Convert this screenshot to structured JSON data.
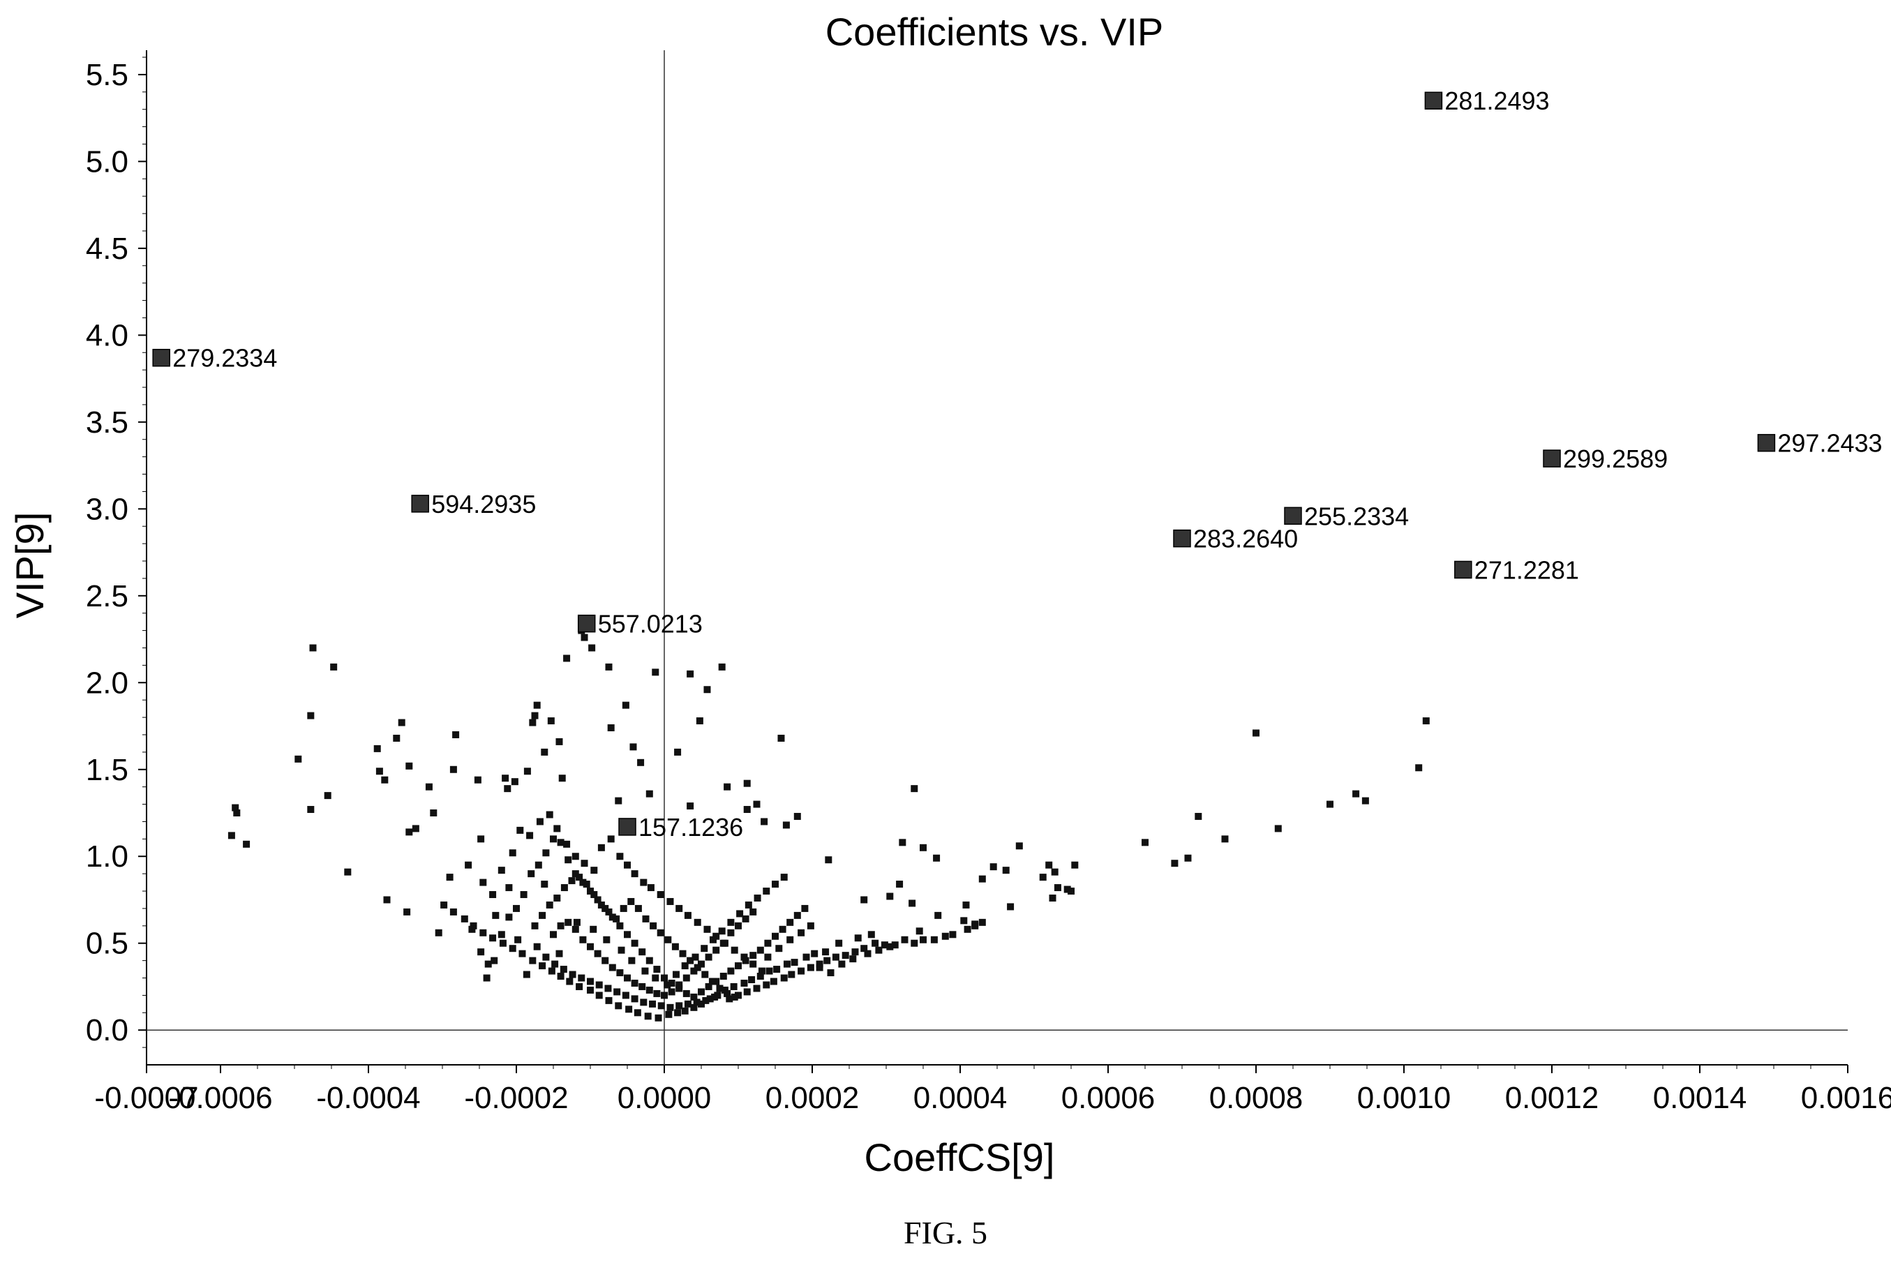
{
  "chart_data": {
    "type": "scatter",
    "title": "Coefficients vs. VIP",
    "xlabel": "CoeffCS[9]",
    "ylabel": "VIP[9]",
    "xlim": [
      -0.0007,
      0.0016
    ],
    "ylim": [
      -0.2,
      5.6
    ],
    "x_ticks": [
      -0.0007,
      -0.0006,
      -0.0004,
      -0.0002,
      0.0,
      0.0002,
      0.0004,
      0.0006,
      0.0008,
      0.001,
      0.0012,
      0.0014,
      0.0016
    ],
    "x_tick_labels": [
      "-0.0007",
      "-0.0006",
      "-0.0004",
      "-0.0002",
      "0.0000",
      "0.0002",
      "0.0004",
      "0.0006",
      "0.0008",
      "0.0010",
      "0.0012",
      "0.0014",
      "0.0016"
    ],
    "y_ticks": [
      0.0,
      0.5,
      1.0,
      1.5,
      2.0,
      2.5,
      3.0,
      3.5,
      4.0,
      4.5,
      5.0,
      5.5
    ],
    "y_tick_labels": [
      "0.0",
      "0.5",
      "1.0",
      "1.5",
      "2.0",
      "2.5",
      "3.0",
      "3.5",
      "4.0",
      "4.5",
      "5.0",
      "5.5"
    ],
    "grid": false,
    "zero_lines": true,
    "marker_color": "#111111",
    "highlight_color": "#333333",
    "labeled_points": [
      {
        "label": "281.2493",
        "x": 0.00104,
        "y": 5.35
      },
      {
        "label": "279.2334",
        "x": -0.00068,
        "y": 3.87
      },
      {
        "label": "297.2433",
        "x": 0.00149,
        "y": 3.38
      },
      {
        "label": "299.2589",
        "x": 0.0012,
        "y": 3.29
      },
      {
        "label": "594.2935",
        "x": -0.00033,
        "y": 3.03
      },
      {
        "label": "255.2334",
        "x": 0.00085,
        "y": 2.96
      },
      {
        "label": "283.2640",
        "x": 0.0007,
        "y": 2.83
      },
      {
        "label": "271.2281",
        "x": 0.00108,
        "y": 2.65
      },
      {
        "label": "557.0213",
        "x": -0.000105,
        "y": 2.34
      },
      {
        "label": "157.1236",
        "x": -5e-05,
        "y": 1.17
      }
    ],
    "points": [
      [
        -0.00058,
        1.28
      ],
      [
        -0.000578,
        1.25
      ],
      [
        -0.000585,
        1.12
      ],
      [
        -0.000565,
        1.07
      ],
      [
        -0.000475,
        2.2
      ],
      [
        -0.000447,
        2.09
      ],
      [
        -0.000478,
        1.81
      ],
      [
        -0.000495,
        1.56
      ],
      [
        -0.000455,
        1.35
      ],
      [
        -0.000478,
        1.27
      ],
      [
        -0.000428,
        0.91
      ],
      [
        -0.000355,
        1.77
      ],
      [
        -0.000362,
        1.68
      ],
      [
        -0.000388,
        1.62
      ],
      [
        -0.000385,
        1.49
      ],
      [
        -0.000378,
        1.44
      ],
      [
        -0.000345,
        1.52
      ],
      [
        -0.000318,
        1.4
      ],
      [
        -0.000375,
        0.75
      ],
      [
        -0.000348,
        0.68
      ],
      [
        -0.000336,
        1.16
      ],
      [
        -0.000345,
        1.14
      ],
      [
        -0.000312,
        1.25
      ],
      [
        -0.000282,
        1.7
      ],
      [
        -0.000285,
        1.5
      ],
      [
        -0.000252,
        1.44
      ],
      [
        -0.000305,
        0.56
      ],
      [
        -0.000248,
        1.1
      ],
      [
        -0.00029,
        0.88
      ],
      [
        -0.000215,
        1.45
      ],
      [
        -0.000212,
        1.39
      ],
      [
        -0.000202,
        1.43
      ],
      [
        -0.000185,
        1.49
      ],
      [
        -0.000172,
        1.87
      ],
      [
        -0.000175,
        1.81
      ],
      [
        -0.000178,
        1.77
      ],
      [
        -0.000153,
        1.78
      ],
      [
        -0.000162,
        1.6
      ],
      [
        -0.000142,
        1.66
      ],
      [
        -0.000138,
        1.45
      ],
      [
        -0.000112,
        2.3
      ],
      [
        -0.000108,
        2.26
      ],
      [
        -0.000132,
        2.14
      ],
      [
        -9.8e-05,
        2.2
      ],
      [
        -7.5e-05,
        2.09
      ],
      [
        -7.2e-05,
        1.74
      ],
      [
        -5.2e-05,
        1.87
      ],
      [
        -4.2e-05,
        1.63
      ],
      [
        -3.2e-05,
        1.54
      ],
      [
        -1.2e-05,
        2.06
      ],
      [
        3.5e-05,
        2.05
      ],
      [
        5.8e-05,
        1.96
      ],
      [
        7.8e-05,
        2.09
      ],
      [
        4.8e-05,
        1.78
      ],
      [
        1.8e-05,
        1.6
      ],
      [
        0.000158,
        1.68
      ],
      [
        0.000112,
        1.42
      ],
      [
        8.5e-05,
        1.4
      ],
      [
        3.5e-05,
        1.29
      ],
      [
        -2e-05,
        1.36
      ],
      [
        -6.2e-05,
        1.32
      ],
      [
        0.000125,
        1.3
      ],
      [
        0.000112,
        1.27
      ],
      [
        0.00018,
        1.23
      ],
      [
        0.000165,
        1.18
      ],
      [
        0.000135,
        1.2
      ],
      [
        0.000338,
        1.39
      ],
      [
        0.000322,
        1.08
      ],
      [
        0.00035,
        1.05
      ],
      [
        0.000368,
        0.99
      ],
      [
        0.00048,
        1.06
      ],
      [
        0.000445,
        0.94
      ],
      [
        0.000462,
        0.92
      ],
      [
        0.00052,
        0.95
      ],
      [
        0.000528,
        0.91
      ],
      [
        0.000555,
        0.95
      ],
      [
        0.000512,
        0.88
      ],
      [
        0.000532,
        0.82
      ],
      [
        0.000545,
        0.81
      ],
      [
        0.00055,
        0.8
      ],
      [
        0.000525,
        0.76
      ],
      [
        0.00043,
        0.87
      ],
      [
        0.000408,
        0.72
      ],
      [
        0.000405,
        0.63
      ],
      [
        0.00042,
        0.61
      ],
      [
        0.00037,
        0.66
      ],
      [
        0.000335,
        0.73
      ],
      [
        0.000318,
        0.84
      ],
      [
        0.000305,
        0.77
      ],
      [
        0.000222,
        0.98
      ],
      [
        0.00027,
        0.75
      ],
      [
        0.000468,
        0.71
      ],
      [
        0.00065,
        1.08
      ],
      [
        0.00069,
        0.96
      ],
      [
        0.000708,
        0.99
      ],
      [
        0.000722,
        1.23
      ],
      [
        0.000758,
        1.1
      ],
      [
        0.0008,
        1.71
      ],
      [
        0.00083,
        1.16
      ],
      [
        0.0009,
        1.3
      ],
      [
        0.000935,
        1.36
      ],
      [
        0.000948,
        1.32
      ],
      [
        0.00102,
        1.51
      ],
      [
        0.00103,
        1.78
      ],
      [
        0.00043,
        0.62
      ],
      [
        0.00042,
        0.6
      ],
      [
        0.00041,
        0.58
      ],
      [
        0.00039,
        0.55
      ],
      [
        0.00038,
        0.54
      ],
      [
        0.000365,
        0.52
      ],
      [
        0.00035,
        0.52
      ],
      [
        0.000338,
        0.5
      ],
      [
        0.000325,
        0.52
      ],
      [
        0.000312,
        0.49
      ],
      [
        0.000298,
        0.49
      ],
      [
        0.000285,
        0.5
      ],
      [
        0.00027,
        0.47
      ],
      [
        0.000258,
        0.45
      ],
      [
        0.000245,
        0.43
      ],
      [
        0.000232,
        0.42
      ],
      [
        0.00022,
        0.4
      ],
      [
        0.00021,
        0.38
      ],
      [
        0.000198,
        0.36
      ],
      [
        0.000185,
        0.34
      ],
      [
        0.000172,
        0.32
      ],
      [
        0.000162,
        0.3
      ],
      [
        0.000148,
        0.28
      ],
      [
        0.000138,
        0.26
      ],
      [
        0.000125,
        0.24
      ],
      [
        0.000112,
        0.22
      ],
      [
        0.0001,
        0.2
      ],
      [
        8.8e-05,
        0.18
      ],
      [
        0.000345,
        0.57
      ],
      [
        0.00028,
        0.55
      ],
      [
        0.000262,
        0.53
      ],
      [
        0.000236,
        0.5
      ],
      [
        0.000218,
        0.45
      ],
      [
        0.000203,
        0.44
      ],
      [
        0.000192,
        0.42
      ],
      [
        0.000176,
        0.39
      ],
      [
        0.000166,
        0.38
      ],
      [
        0.000152,
        0.35
      ],
      [
        0.000142,
        0.34
      ],
      [
        0.00013,
        0.31
      ],
      [
        0.000118,
        0.29
      ],
      [
        0.000108,
        0.27
      ],
      [
        9.4e-05,
        0.25
      ],
      [
        8.2e-05,
        0.23
      ],
      [
        7.2e-05,
        0.2
      ],
      [
        6.2e-05,
        0.18
      ],
      [
        5e-05,
        0.15
      ],
      [
        4e-05,
        0.13
      ],
      [
        2.8e-05,
        0.11
      ],
      [
        1.8e-05,
        0.1
      ],
      [
        6e-06,
        0.09
      ],
      [
        -8e-06,
        0.07
      ],
      [
        -2.2e-05,
        0.08
      ],
      [
        -3.6e-05,
        0.1
      ],
      [
        -4.8e-05,
        0.12
      ],
      [
        -6.2e-05,
        0.14
      ],
      [
        -7.5e-05,
        0.17
      ],
      [
        -8.8e-05,
        0.2
      ],
      [
        -0.0001,
        0.23
      ],
      [
        -0.000115,
        0.25
      ],
      [
        -0.000128,
        0.28
      ],
      [
        -0.00014,
        0.31
      ],
      [
        -0.000152,
        0.34
      ],
      [
        -0.000165,
        0.37
      ],
      [
        -0.000178,
        0.4
      ],
      [
        -0.000192,
        0.44
      ],
      [
        -0.000205,
        0.47
      ],
      [
        -0.000218,
        0.5
      ],
      [
        -0.000232,
        0.53
      ],
      [
        -0.000245,
        0.56
      ],
      [
        -0.000258,
        0.6
      ],
      [
        -0.00027,
        0.64
      ],
      [
        -0.000285,
        0.68
      ],
      [
        -0.000298,
        0.72
      ],
      [
        -0.00024,
        0.3
      ],
      [
        -0.00023,
        0.4
      ],
      [
        -0.00022,
        0.55
      ],
      [
        -0.00021,
        0.65
      ],
      [
        -0.0002,
        0.7
      ],
      [
        -0.00019,
        0.78
      ],
      [
        -0.00018,
        0.9
      ],
      [
        -0.00017,
        0.95
      ],
      [
        -0.00016,
        1.02
      ],
      [
        -0.00015,
        1.1
      ],
      [
        -0.00014,
        1.08
      ],
      [
        -0.00013,
        0.98
      ],
      [
        -0.00012,
        0.9
      ],
      [
        -0.00011,
        0.85
      ],
      [
        -0.0001,
        0.8
      ],
      [
        -9e-05,
        0.75
      ],
      [
        -8e-05,
        0.7
      ],
      [
        -7e-05,
        0.65
      ],
      [
        -6e-05,
        0.6
      ],
      [
        -5e-05,
        0.55
      ],
      [
        -4e-05,
        0.5
      ],
      [
        -3e-05,
        0.45
      ],
      [
        -2e-05,
        0.4
      ],
      [
        -1e-05,
        0.35
      ],
      [
        0.0,
        0.3
      ],
      [
        1e-05,
        0.27
      ],
      [
        2e-05,
        0.24
      ],
      [
        3e-05,
        0.21
      ],
      [
        4e-05,
        0.19
      ],
      [
        5e-05,
        0.22
      ],
      [
        6e-05,
        0.25
      ],
      [
        7e-05,
        0.28
      ],
      [
        8e-05,
        0.31
      ],
      [
        9e-05,
        0.34
      ],
      [
        0.0001,
        0.37
      ],
      [
        0.00011,
        0.4
      ],
      [
        0.00012,
        0.43
      ],
      [
        0.00013,
        0.46
      ],
      [
        0.00014,
        0.5
      ],
      [
        0.00015,
        0.54
      ],
      [
        0.00016,
        0.58
      ],
      [
        0.00017,
        0.62
      ],
      [
        0.00018,
        0.66
      ],
      [
        0.00019,
        0.7
      ],
      [
        -0.00022,
        0.92
      ],
      [
        -0.000205,
        1.02
      ],
      [
        -0.000195,
        1.15
      ],
      [
        -0.000182,
        1.12
      ],
      [
        -0.000168,
        1.2
      ],
      [
        -0.000155,
        1.24
      ],
      [
        -0.000145,
        1.16
      ],
      [
        -0.000132,
        1.07
      ],
      [
        -0.00012,
        1.0
      ],
      [
        -0.000108,
        0.96
      ],
      [
        -9.5e-05,
        0.92
      ],
      [
        -8.5e-05,
        1.05
      ],
      [
        -7.2e-05,
        1.1
      ],
      [
        -6e-05,
        1.0
      ],
      [
        -5e-05,
        0.95
      ],
      [
        -4e-05,
        0.9
      ],
      [
        -2.8e-05,
        0.85
      ],
      [
        -1.8e-05,
        0.82
      ],
      [
        -5e-06,
        0.78
      ],
      [
        8e-06,
        0.74
      ],
      [
        2e-05,
        0.7
      ],
      [
        3.2e-05,
        0.66
      ],
      [
        4.5e-05,
        0.62
      ],
      [
        5.8e-05,
        0.58
      ],
      [
        7e-05,
        0.54
      ],
      [
        8.2e-05,
        0.5
      ],
      [
        9.5e-05,
        0.46
      ],
      [
        0.000108,
        0.42
      ],
      [
        0.00012,
        0.38
      ],
      [
        0.000132,
        0.34
      ],
      [
        -0.00016,
        0.42
      ],
      [
        -0.000148,
        0.38
      ],
      [
        -0.000136,
        0.35
      ],
      [
        -0.000124,
        0.32
      ],
      [
        -0.000112,
        0.3
      ],
      [
        -0.0001,
        0.28
      ],
      [
        -8.8e-05,
        0.26
      ],
      [
        -7.6e-05,
        0.24
      ],
      [
        -6.4e-05,
        0.22
      ],
      [
        -5.2e-05,
        0.2
      ],
      [
        -4e-05,
        0.18
      ],
      [
        -2.8e-05,
        0.16
      ],
      [
        -1.6e-05,
        0.15
      ],
      [
        -4e-06,
        0.14
      ],
      [
        8e-06,
        0.13
      ],
      [
        2e-05,
        0.14
      ],
      [
        3.2e-05,
        0.15
      ],
      [
        4.4e-05,
        0.16
      ],
      [
        5.6e-05,
        0.17
      ],
      [
        6.8e-05,
        0.19
      ],
      [
        -0.00015,
        0.55
      ],
      [
        -0.00014,
        0.6
      ],
      [
        -0.00013,
        0.62
      ],
      [
        -0.00012,
        0.58
      ],
      [
        -0.00011,
        0.52
      ],
      [
        -0.0001,
        0.48
      ],
      [
        -9e-05,
        0.44
      ],
      [
        -8e-05,
        0.4
      ],
      [
        -7e-05,
        0.36
      ],
      [
        -6e-05,
        0.33
      ],
      [
        -5e-05,
        0.3
      ],
      [
        -4e-05,
        0.27
      ],
      [
        -3e-05,
        0.25
      ],
      [
        -2e-05,
        0.23
      ],
      [
        -1e-05,
        0.21
      ],
      [
        0.0,
        0.2
      ],
      [
        1e-05,
        0.22
      ],
      [
        2e-05,
        0.26
      ],
      [
        3e-05,
        0.3
      ],
      [
        4e-05,
        0.34
      ],
      [
        5e-05,
        0.38
      ],
      [
        6e-05,
        0.42
      ],
      [
        7e-05,
        0.46
      ],
      [
        8e-05,
        0.5
      ],
      [
        9e-05,
        0.56
      ],
      [
        0.0001,
        0.6
      ],
      [
        0.00011,
        0.64
      ],
      [
        0.00012,
        0.68
      ],
      [
        -0.000175,
        0.6
      ],
      [
        -0.000165,
        0.66
      ],
      [
        -0.000155,
        0.72
      ],
      [
        -0.000145,
        0.76
      ],
      [
        -0.000135,
        0.82
      ],
      [
        -0.000125,
        0.86
      ],
      [
        -0.000115,
        0.88
      ],
      [
        -0.000105,
        0.84
      ],
      [
        -9.5e-05,
        0.78
      ],
      [
        -8.5e-05,
        0.72
      ],
      [
        -7.5e-05,
        0.68
      ],
      [
        -6.5e-05,
        0.64
      ],
      [
        -5.5e-05,
        0.7
      ],
      [
        -4.5e-05,
        0.74
      ],
      [
        -3.5e-05,
        0.7
      ],
      [
        -2.5e-05,
        0.64
      ],
      [
        -1.5e-05,
        0.6
      ],
      [
        -5e-06,
        0.56
      ],
      [
        5e-06,
        0.52
      ],
      [
        1.5e-05,
        0.48
      ],
      [
        2.5e-05,
        0.44
      ],
      [
        3.5e-05,
        0.4
      ],
      [
        4.5e-05,
        0.36
      ],
      [
        5.5e-05,
        0.32
      ],
      [
        6.5e-05,
        0.28
      ],
      [
        7.5e-05,
        0.24
      ],
      [
        8.5e-05,
        0.21
      ],
      [
        9.5e-05,
        0.19
      ],
      [
        -0.000245,
        0.85
      ],
      [
        -0.000232,
        0.78
      ],
      [
        -0.000265,
        0.95
      ],
      [
        -0.00026,
        0.58
      ],
      [
        -0.000248,
        0.45
      ],
      [
        -0.000238,
        0.38
      ],
      [
        -0.000228,
        0.66
      ],
      [
        -0.00021,
        0.82
      ],
      [
        -0.000198,
        0.52
      ],
      [
        -0.000186,
        0.32
      ],
      [
        -0.000172,
        0.48
      ],
      [
        -0.000162,
        0.84
      ],
      [
        -0.000142,
        0.44
      ],
      [
        -0.000118,
        0.62
      ],
      [
        -9.6e-05,
        0.58
      ],
      [
        -7.8e-05,
        0.52
      ],
      [
        -5.8e-05,
        0.46
      ],
      [
        -4.4e-05,
        0.4
      ],
      [
        -2.6e-05,
        0.34
      ],
      [
        -1.2e-05,
        0.3
      ],
      [
        4e-06,
        0.26
      ],
      [
        1.6e-05,
        0.32
      ],
      [
        2.8e-05,
        0.37
      ],
      [
        4.2e-05,
        0.42
      ],
      [
        5.4e-05,
        0.47
      ],
      [
        6.6e-05,
        0.52
      ],
      [
        7.8e-05,
        0.57
      ],
      [
        9e-05,
        0.62
      ],
      [
        0.000102,
        0.67
      ],
      [
        0.000114,
        0.72
      ],
      [
        0.000126,
        0.76
      ],
      [
        0.000138,
        0.8
      ],
      [
        0.00015,
        0.84
      ],
      [
        0.000162,
        0.88
      ],
      [
        0.00014,
        0.42
      ],
      [
        0.000155,
        0.47
      ],
      [
        0.00017,
        0.52
      ],
      [
        0.000185,
        0.56
      ],
      [
        0.000198,
        0.6
      ],
      [
        0.00021,
        0.36
      ],
      [
        0.000225,
        0.33
      ],
      [
        0.00024,
        0.38
      ],
      [
        0.000255,
        0.41
      ],
      [
        0.000275,
        0.44
      ],
      [
        0.00029,
        0.46
      ],
      [
        0.000305,
        0.48
      ]
    ]
  },
  "figure_caption": "FIG. 5"
}
